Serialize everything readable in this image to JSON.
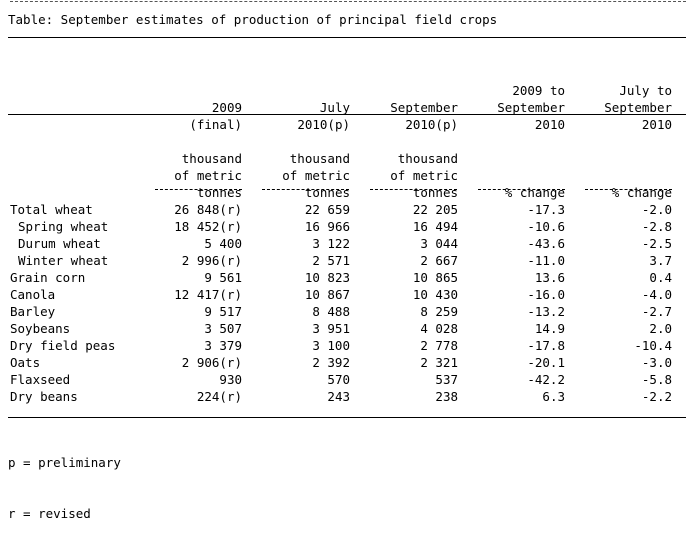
{
  "title": "Table: September estimates of production of principal field crops",
  "headers": [
    [
      "2009",
      "(final)"
    ],
    [
      "July",
      "2010(p)"
    ],
    [
      "September",
      "2010(p)"
    ],
    [
      "2009 to",
      "September",
      "2010"
    ],
    [
      "July to",
      "September",
      "2010"
    ]
  ],
  "units": [
    [
      "thousand",
      "of metric",
      "tonnes"
    ],
    [
      "thousand",
      "of metric",
      "tonnes"
    ],
    [
      "thousand",
      "of metric",
      "tonnes"
    ],
    [
      "% change"
    ],
    [
      "% change"
    ]
  ],
  "rows": [
    {
      "label": "Total wheat",
      "values": [
        "26 848(r)",
        "22 659",
        "22 205",
        "-17.3",
        "-2.0"
      ]
    },
    {
      "label": "Spring wheat",
      "values": [
        "18 452(r)",
        "16 966",
        "16 494",
        "-10.6",
        "-2.8"
      ]
    },
    {
      "label": "Durum wheat",
      "values": [
        "5 400",
        "3 122",
        "3 044",
        "-43.6",
        "-2.5"
      ]
    },
    {
      "label": "Winter wheat",
      "values": [
        "2 996(r)",
        "2 571",
        "2 667",
        "-11.0",
        "3.7"
      ]
    },
    {
      "label": "Grain corn",
      "values": [
        "9 561",
        "10 823",
        "10 865",
        "13.6",
        "0.4"
      ]
    },
    {
      "label": "Canola",
      "values": [
        "12 417(r)",
        "10 867",
        "10 430",
        "-16.0",
        "-4.0"
      ]
    },
    {
      "label": "Barley",
      "values": [
        "9 517",
        "8 488",
        "8 259",
        "-13.2",
        "-2.7"
      ]
    },
    {
      "label": "Soybeans",
      "values": [
        "3 507",
        "3 951",
        "4 028",
        "14.9",
        "2.0"
      ]
    },
    {
      "label": "Dry field peas",
      "values": [
        "3 379",
        "3 100",
        "2 778",
        "-17.8",
        "-10.4"
      ]
    },
    {
      "label": "Oats",
      "values": [
        "2 906(r)",
        "2 392",
        "2 321",
        "-20.1",
        "-3.0"
      ]
    },
    {
      "label": "Flaxseed",
      "values": [
        "930",
        "570",
        "537",
        "-42.2",
        "-5.8"
      ]
    },
    {
      "label": "Dry beans",
      "values": [
        "224(r)",
        "243",
        "238",
        "6.3",
        "-2.2"
      ]
    }
  ],
  "notes": [
    "p = preliminary",
    "r = revised"
  ]
}
